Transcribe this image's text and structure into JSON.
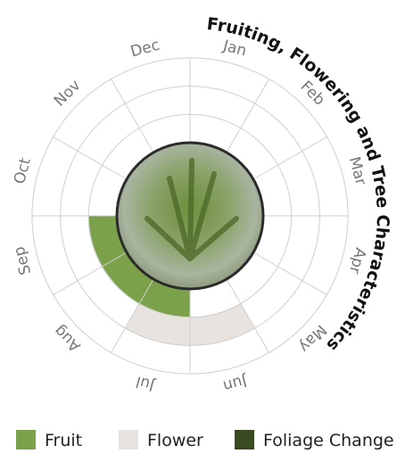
{
  "chart_data": {
    "type": "polar-calendar",
    "title": "Fruiting, Flowering and Tree Characteristics",
    "categories": [
      "Jan",
      "Feb",
      "Mar",
      "Apr",
      "May",
      "Jun",
      "Jul",
      "Aug",
      "Sep",
      "Oct",
      "Nov",
      "Dec"
    ],
    "series": [
      {
        "name": "Fruit",
        "color": "#7ba24b",
        "values": [
          0,
          0,
          0,
          0,
          0,
          0,
          1,
          1,
          1,
          0,
          0,
          0
        ]
      },
      {
        "name": "Flower",
        "color": "#e8e3de",
        "values": [
          0,
          0,
          0,
          0,
          0,
          1,
          1,
          0,
          0,
          0,
          0,
          0
        ]
      },
      {
        "name": "Foliage Change",
        "color": "#3a4a22",
        "values": [
          0,
          0,
          0,
          0,
          0,
          0,
          0,
          0,
          0,
          0,
          0,
          0
        ]
      }
    ]
  }
}
